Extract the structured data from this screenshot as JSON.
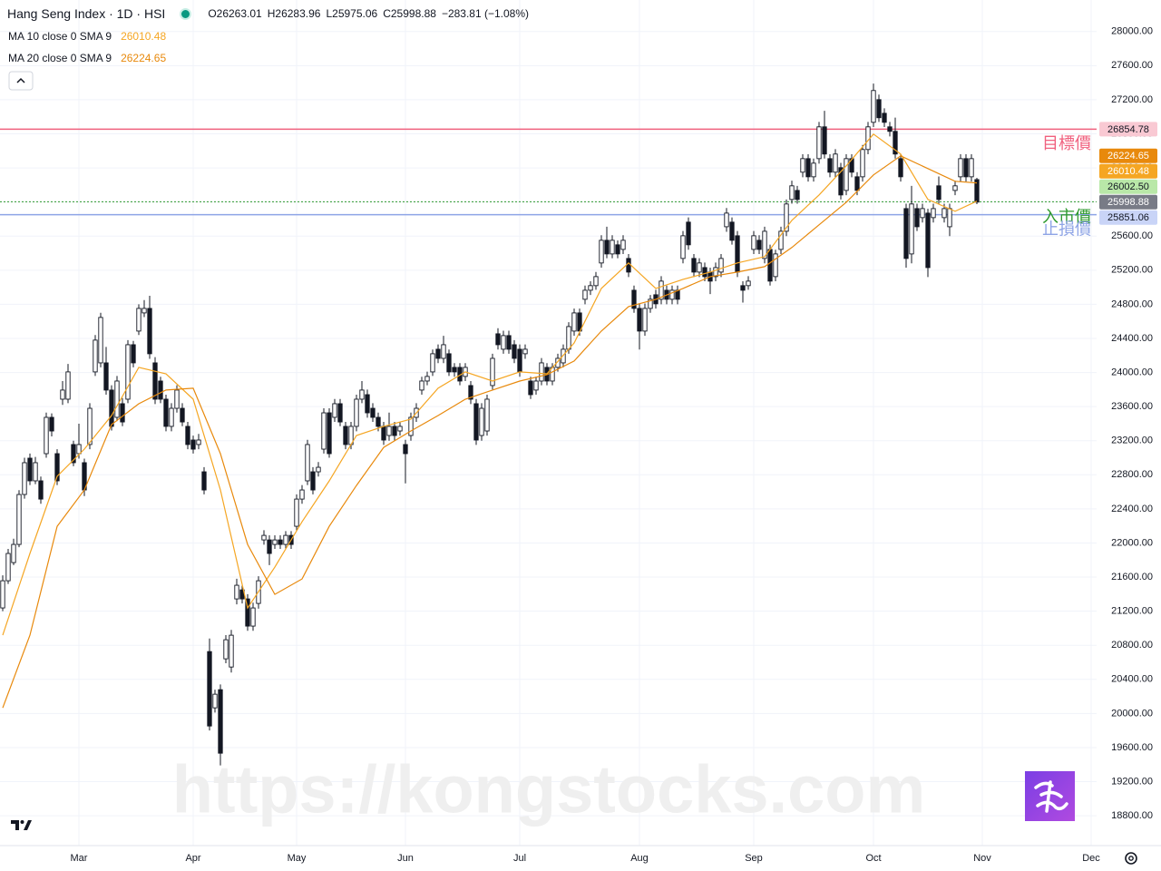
{
  "chart_data": {
    "type": "candlestick",
    "title": "Hang Seng Index · 1D · HSI",
    "ohlc_letters": [
      "O",
      "H",
      "L",
      "C"
    ],
    "change_text": "−283.81 (−1.08%)",
    "xlim": [
      -0.5,
      201
    ],
    "xticks": [
      {
        "value": 14,
        "label": "Mar"
      },
      {
        "value": 35,
        "label": "Apr"
      },
      {
        "value": 54,
        "label": "May"
      },
      {
        "value": 74,
        "label": "Jun"
      },
      {
        "value": 95,
        "label": "Jul"
      },
      {
        "value": 117,
        "label": "Aug"
      },
      {
        "value": 138,
        "label": "Sep"
      },
      {
        "value": 160,
        "label": "Oct"
      },
      {
        "value": 180,
        "label": "Nov"
      },
      {
        "value": 200,
        "label": "Dec"
      }
    ],
    "ylim": [
      18450,
      28370
    ],
    "yticks": [
      {
        "value": 18800,
        "label": "18800.00"
      },
      {
        "value": 19200,
        "label": "19200.00"
      },
      {
        "value": 19600,
        "label": "19600.00"
      },
      {
        "value": 20000,
        "label": "20000.00"
      },
      {
        "value": 20400,
        "label": "20400.00"
      },
      {
        "value": 20800,
        "label": "20800.00"
      },
      {
        "value": 21200,
        "label": "21200.00"
      },
      {
        "value": 21600,
        "label": "21600.00"
      },
      {
        "value": 22000,
        "label": "22000.00"
      },
      {
        "value": 22400,
        "label": "22400.00"
      },
      {
        "value": 22800,
        "label": "22800.00"
      },
      {
        "value": 23200,
        "label": "23200.00"
      },
      {
        "value": 23600,
        "label": "23600.00"
      },
      {
        "value": 24000,
        "label": "24000.00"
      },
      {
        "value": 24400,
        "label": "24400.00"
      },
      {
        "value": 24800,
        "label": "24800.00"
      },
      {
        "value": 25200,
        "label": "25200.00"
      },
      {
        "value": 25600,
        "label": "25600.00"
      },
      {
        "value": 26000,
        "label": "26000.00"
      },
      {
        "value": 26400,
        "label": "26400.00"
      },
      {
        "value": 26800,
        "label": "26800.00"
      },
      {
        "value": 27200,
        "label": "27200.00"
      },
      {
        "value": 27600,
        "label": "27600.00"
      },
      {
        "value": 28000,
        "label": "28000.00"
      }
    ],
    "grid": true,
    "up_color": "#ffffff",
    "down_color": "#131722",
    "ohlc": {
      "badge_color": "#787b86",
      "open": [
        21238,
        21557,
        21770,
        21983,
        22569,
        22995,
        22729,
        22729,
        23048,
        23474,
        23048,
        23687,
        23687,
        23155,
        23048,
        22942,
        23155,
        24007,
        24113,
        24113,
        23794,
        23474,
        23634,
        23687,
        24326,
        24486,
        24699,
        24752,
        24113,
        23900,
        23687,
        23368,
        23580,
        23580,
        23368,
        23208,
        23155,
        22835,
        20726,
        20066,
        20279,
        20641,
        20545,
        21344,
        21450,
        21344,
        21025,
        21291,
        22036,
        22036,
        21983,
        22036,
        21983,
        22089,
        22196,
        22515,
        22729,
        22835,
        22835,
        23101,
        23527,
        23474,
        23634,
        23368,
        23155,
        23368,
        23687,
        23740,
        23580,
        23474,
        23368,
        23261,
        23368,
        23314,
        23155,
        23261,
        23474,
        23794,
        23900,
        24007,
        24273,
        24166,
        24220,
        24060,
        24060,
        23954,
        23847,
        23634,
        23261,
        23314,
        23847,
        24454,
        24273,
        24433,
        24326,
        24273,
        24220,
        23900,
        23794,
        23900,
        24060,
        23900,
        24060,
        24113,
        24273,
        24486,
        24699,
        24859,
        24965,
        25019,
        25285,
        25551,
        25391,
        25498,
        25444,
        25338,
        24965,
        24752,
        24486,
        24752,
        24912,
        24859,
        24965,
        24859,
        24965,
        25338,
        25764,
        25338,
        25178,
        25231,
        25178,
        25125,
        25178,
        25710,
        25764,
        25604,
        25019,
        25019,
        25444,
        25551,
        25338,
        25444,
        25125,
        25444,
        25657,
        26030,
        26136,
        26350,
        26509,
        26296,
        26509,
        26882,
        26509,
        26350,
        26403,
        26136,
        26509,
        26296,
        26296,
        26616,
        26935,
        27201,
        27041,
        26882,
        26829,
        26509,
        25923,
        25391,
        25923,
        25817,
        25870,
        25817,
        26190,
        25817,
        25710,
        26136,
        26296,
        26509,
        26296,
        26263.01
      ],
      "high": [
        21620,
        21930,
        22050,
        22620,
        23000,
        23050,
        23010,
        22780,
        23530,
        23520,
        23100,
        23900,
        24100,
        23200,
        23400,
        22990,
        23640,
        24440,
        24700,
        24300,
        23850,
        23960,
        23700,
        24380,
        24370,
        24800,
        24850,
        24900,
        24180,
        23950,
        23740,
        23640,
        23850,
        23640,
        23420,
        23260,
        23280,
        22890,
        20880,
        20280,
        20340,
        20920,
        20980,
        21580,
        21500,
        21400,
        21300,
        21610,
        22150,
        22090,
        22090,
        22090,
        22140,
        22140,
        22570,
        22680,
        23210,
        22890,
        22950,
        23580,
        23580,
        23690,
        23690,
        23420,
        23420,
        23740,
        23900,
        23800,
        23640,
        23530,
        23420,
        23530,
        23420,
        23420,
        23210,
        23530,
        23640,
        23950,
        24010,
        24270,
        24330,
        24430,
        24270,
        24110,
        24110,
        24110,
        23900,
        23690,
        23640,
        23740,
        24220,
        24520,
        24490,
        24490,
        24380,
        24330,
        24330,
        23950,
        23950,
        24170,
        24110,
        24110,
        24220,
        24330,
        24590,
        24750,
        24750,
        25020,
        25070,
        25180,
        25610,
        25710,
        25610,
        25550,
        25610,
        25390,
        25020,
        24810,
        24810,
        24910,
        24970,
        25130,
        25020,
        25020,
        25020,
        25660,
        25820,
        25390,
        25340,
        25290,
        25230,
        25290,
        25390,
        25930,
        25820,
        25660,
        25070,
        25130,
        25660,
        25610,
        25710,
        25500,
        25440,
        25710,
        26030,
        26250,
        26190,
        26560,
        26560,
        26510,
        26940,
        27070,
        26560,
        26620,
        26460,
        26560,
        26560,
        26350,
        26670,
        26940,
        27390,
        27260,
        27100,
        26940,
        26990,
        26560,
        25980,
        26190,
        25980,
        25980,
        25920,
        25980,
        26300,
        25980,
        25980,
        26250,
        26560,
        26560,
        26560,
        26283.96
      ],
      "low": [
        21200,
        21520,
        21740,
        21950,
        22520,
        22680,
        22690,
        22460,
        23000,
        23250,
        22680,
        23620,
        23640,
        22900,
        22990,
        22550,
        23100,
        23960,
        24060,
        23740,
        23320,
        23430,
        23370,
        23640,
        24060,
        24440,
        24650,
        24160,
        23630,
        23640,
        23310,
        23310,
        23530,
        23370,
        23100,
        23050,
        23100,
        22570,
        19800,
        20010,
        19390,
        20590,
        20480,
        21280,
        21290,
        20970,
        20970,
        21230,
        21980,
        21740,
        21930,
        21930,
        21930,
        21930,
        22140,
        22460,
        22680,
        22570,
        22780,
        23050,
        23000,
        23420,
        23370,
        23100,
        23100,
        23310,
        23640,
        23470,
        23420,
        23310,
        23150,
        23200,
        23200,
        23260,
        22700,
        23200,
        23420,
        23740,
        23850,
        23960,
        24110,
        24110,
        23960,
        23950,
        23850,
        23900,
        23630,
        23150,
        23200,
        23260,
        23800,
        24270,
        24220,
        24220,
        24110,
        23950,
        24160,
        23690,
        23740,
        23850,
        23850,
        23850,
        24010,
        24060,
        24220,
        24430,
        24430,
        24800,
        24910,
        24970,
        25230,
        25340,
        25340,
        25340,
        25390,
        25120,
        24700,
        24270,
        24430,
        24700,
        24750,
        24800,
        24800,
        24800,
        24800,
        25280,
        25440,
        25120,
        25120,
        25070,
        24920,
        25070,
        25120,
        25650,
        25500,
        25120,
        24820,
        24970,
        25390,
        25390,
        25280,
        25020,
        25070,
        25390,
        25600,
        25980,
        25980,
        26290,
        26240,
        26240,
        26450,
        26510,
        26290,
        26290,
        26030,
        26080,
        26290,
        26080,
        26240,
        26560,
        26880,
        26940,
        26880,
        26770,
        26510,
        26240,
        25230,
        25280,
        25660,
        25760,
        25120,
        25760,
        25980,
        25760,
        25600,
        26080,
        26240,
        26240,
        26240,
        25975.06
      ],
      "close": [
        21557,
        21877,
        21983,
        22569,
        22942,
        22729,
        22942,
        22515,
        23474,
        23314,
        22729,
        23794,
        24007,
        22942,
        23155,
        22622,
        23580,
        24380,
        24646,
        23794,
        23368,
        23900,
        23420,
        24326,
        24113,
        24752,
        24752,
        24220,
        23687,
        23687,
        23368,
        23580,
        23794,
        23420,
        23155,
        23101,
        23208,
        22622,
        19853,
        20226,
        19534,
        20865,
        20918,
        21504,
        21344,
        21025,
        21238,
        21557,
        22089,
        21877,
        22036,
        21983,
        22089,
        21983,
        22515,
        22622,
        23155,
        22622,
        22888,
        23527,
        23048,
        23634,
        23420,
        23155,
        23368,
        23687,
        23794,
        23527,
        23474,
        23368,
        23208,
        23368,
        23261,
        23368,
        23048,
        23474,
        23580,
        23900,
        23954,
        24220,
        24166,
        24326,
        24007,
        24007,
        23900,
        24060,
        23687,
        23208,
        23580,
        23687,
        24166,
        24326,
        24433,
        24273,
        24166,
        24007,
        24273,
        23740,
        23900,
        24113,
        23900,
        24060,
        24166,
        24273,
        24539,
        24699,
        24486,
        24965,
        25019,
        25125,
        25551,
        25391,
        25551,
        25391,
        25551,
        25178,
        24752,
        24486,
        24752,
        24859,
        24806,
        25072,
        24859,
        24965,
        24859,
        25604,
        25498,
        25178,
        25285,
        25125,
        25072,
        25231,
        25338,
        25870,
        25551,
        25178,
        24965,
        25072,
        25604,
        25444,
        25657,
        25072,
        25391,
        25657,
        25977,
        26190,
        26030,
        26509,
        26296,
        26456,
        26882,
        26563,
        26350,
        26563,
        26083,
        26509,
        26350,
        26136,
        26616,
        26882,
        27308,
        26989,
        26935,
        26829,
        26563,
        26296,
        25338,
        25977,
        25710,
        25923,
        25231,
        25923,
        26030,
        25923,
        25923,
        26190,
        26509,
        26296,
        26509,
        25998.88
      ]
    },
    "series": [
      {
        "name": "MA 10 close 0 SMA 9",
        "color": "#f5a623",
        "x": [
          0,
          5,
          10,
          15,
          20,
          25,
          30,
          35,
          40,
          45,
          50,
          55,
          60,
          65,
          70,
          75,
          80,
          85,
          90,
          95,
          100,
          105,
          110,
          115,
          120,
          125,
          130,
          135,
          140,
          145,
          150,
          155,
          160,
          165,
          170,
          175,
          179
        ],
        "values": [
          20918,
          21877,
          22782,
          23101,
          23495,
          24060,
          23985,
          23687,
          22622,
          21238,
          21717,
          22249,
          22729,
          23261,
          23368,
          23453,
          23815,
          24007,
          23900,
          24007,
          23985,
          24347,
          24986,
          25285,
          24986,
          25093,
          25178,
          25285,
          25359,
          25785,
          26083,
          26424,
          26797,
          26563,
          26030,
          25891,
          26010.48
        ]
      },
      {
        "name": "MA 20 close 0 SMA 9",
        "color": "#e8890c",
        "x": [
          0,
          5,
          10,
          15,
          20,
          25,
          30,
          35,
          40,
          45,
          50,
          55,
          60,
          65,
          70,
          75,
          80,
          85,
          90,
          95,
          100,
          105,
          110,
          115,
          120,
          125,
          130,
          135,
          140,
          145,
          150,
          155,
          160,
          165,
          170,
          175,
          179
        ],
        "values": [
          20066,
          20918,
          22196,
          22622,
          23390,
          23634,
          23794,
          23815,
          23048,
          21983,
          21397,
          21578,
          22196,
          22675,
          23122,
          23314,
          23495,
          23687,
          23794,
          23900,
          23975,
          24135,
          24486,
          24773,
          24859,
          24986,
          25125,
          25178,
          25242,
          25466,
          25732,
          25998,
          26318,
          26541,
          26392,
          26243,
          26224.65
        ]
      }
    ],
    "levels": [
      {
        "name": "目標價",
        "value": 26854.78,
        "color": "#f0607e",
        "badge_color": "#f9c9d3",
        "style": "solid"
      },
      {
        "name": "入市價",
        "value": 26002.5,
        "label": "26002.50",
        "color": "#2e9a2e",
        "badge_color": "#b9e8a8",
        "style": "dotted"
      },
      {
        "name": "止損價",
        "value": 25851.06,
        "color": "#8ea4e6",
        "badge_color": "#c9d4f7",
        "style": "solid"
      }
    ]
  },
  "watermark": "https://kongstocks.com"
}
